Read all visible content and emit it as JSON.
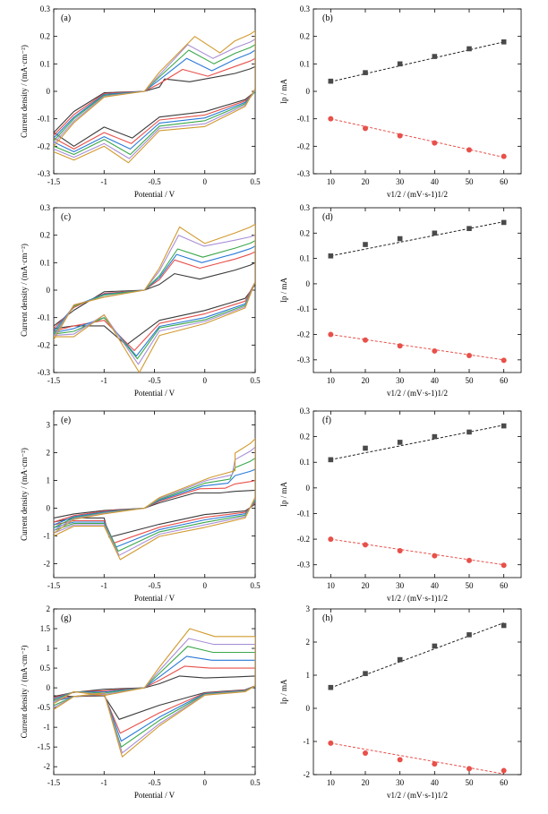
{
  "chart_data": [
    {
      "panel": "a",
      "panel_label": "(a)",
      "type": "line",
      "xlabel": "Potential / V",
      "ylabel": "Current density / (mA·cm⁻²)",
      "xlim": [
        -1.5,
        0.5
      ],
      "ylim": [
        -0.3,
        0.3
      ],
      "xticks": [
        -1.5,
        -1,
        -0.5,
        0,
        0.5
      ],
      "yticks": [
        -0.3,
        -0.2,
        -0.1,
        0,
        0.1,
        0.2,
        0.3
      ],
      "cv": {
        "apeak": [
          -0.4,
          -0.22,
          -0.18,
          -0.16,
          -0.17,
          -0.1
        ],
        "aval": [
          0.045,
          0.08,
          0.12,
          0.15,
          0.17,
          0.2
        ],
        "base": [
          0.035,
          0.055,
          0.075,
          0.1,
          0.12,
          0.14
        ],
        "end": [
          0.09,
          0.12,
          0.15,
          0.17,
          0.19,
          0.22
        ],
        "cpeak": [
          -0.72,
          -0.73,
          -0.74,
          -0.74,
          -0.75,
          -0.76
        ],
        "cval": [
          -0.17,
          -0.19,
          -0.21,
          -0.23,
          -0.245,
          -0.26
        ],
        "startv": [
          -0.15,
          -0.16,
          -0.17,
          -0.18,
          -0.19,
          -0.2
        ],
        "cend": [
          -0.15,
          -0.17,
          -0.185,
          -0.2,
          -0.21,
          -0.22
        ],
        "rev": [
          -0.13,
          -0.15,
          -0.165,
          -0.175,
          -0.19,
          -0.2
        ],
        "vmin": [
          -0.2,
          -0.21,
          -0.22,
          -0.23,
          -0.24,
          -0.25
        ],
        "endz": [
          -0.12,
          -0.14,
          -0.16,
          -0.18,
          -0.2,
          -0.22
        ],
        "ret": [
          -0.03,
          -0.035,
          -0.04,
          -0.045,
          -0.05,
          -0.055
        ],
        "rise": [
          0.0,
          0.0,
          0.0,
          0.0,
          0.005,
          0.01
        ]
      }
    },
    {
      "panel": "b",
      "panel_label": "(b)",
      "type": "scatter",
      "xlabel": "v1/2 / (mV·s-1)1/2",
      "ylabel": "Ip / mA",
      "xlim": [
        5,
        65
      ],
      "ylim": [
        -0.3,
        0.3
      ],
      "xticks": [
        10,
        20,
        30,
        40,
        50,
        60
      ],
      "yticks": [
        -0.3,
        -0.2,
        -0.1,
        0,
        0.1,
        0.2,
        0.3
      ],
      "x": [
        10,
        20,
        30,
        40,
        50,
        60
      ],
      "series": [
        {
          "marker": "square",
          "color": "#4a4a4a",
          "values": [
            0.037,
            0.068,
            0.1,
            0.127,
            0.155,
            0.18
          ],
          "fit": [
            0.035,
            0.18
          ]
        },
        {
          "marker": "circle",
          "color": "#e8504a",
          "values": [
            -0.1,
            -0.135,
            -0.162,
            -0.188,
            -0.213,
            -0.237
          ],
          "fit": [
            -0.1,
            -0.24
          ]
        }
      ]
    },
    {
      "panel": "c",
      "panel_label": "(c)",
      "type": "line",
      "xlabel": "Potential / V",
      "ylabel": "Current density / (mA·cm⁻²)",
      "xlim": [
        -1.5,
        0.5
      ],
      "ylim": [
        -0.3,
        0.3
      ],
      "xticks": [
        -1.5,
        -1,
        -0.5,
        0,
        0.5
      ],
      "yticks": [
        -0.3,
        -0.2,
        -0.1,
        0,
        0.1,
        0.2,
        0.3
      ],
      "cv": {
        "apeak": [
          -0.3,
          -0.3,
          -0.28,
          -0.27,
          -0.26,
          -0.25
        ],
        "aval": [
          0.06,
          0.11,
          0.13,
          0.15,
          0.2,
          0.23
        ],
        "base": [
          0.04,
          0.08,
          0.1,
          0.12,
          0.16,
          0.17
        ],
        "end": [
          0.1,
          0.14,
          0.16,
          0.18,
          0.2,
          0.24
        ],
        "cpeak": [
          -0.78,
          -0.7,
          -0.68,
          -0.67,
          -0.66,
          -0.65
        ],
        "cval": [
          -0.2,
          -0.22,
          -0.24,
          -0.25,
          -0.27,
          -0.3
        ],
        "startv": [
          -0.13,
          -0.14,
          -0.15,
          -0.16,
          -0.17,
          -0.18
        ],
        "cend": [
          -0.14,
          -0.15,
          -0.155,
          -0.16,
          -0.165,
          -0.17
        ],
        "rev": [
          -0.13,
          -0.11,
          -0.1,
          -0.1,
          -0.09,
          -0.09
        ],
        "vmin": [
          -0.13,
          -0.13,
          -0.14,
          -0.15,
          -0.16,
          -0.17
        ],
        "endz": [
          -0.09,
          -0.12,
          -0.13,
          -0.14,
          -0.15,
          -0.16
        ],
        "ret": [
          -0.03,
          -0.04,
          -0.05,
          -0.055,
          -0.06,
          -0.065
        ],
        "rise": [
          0.02,
          0.03,
          0.03,
          0.03,
          0.03,
          0.03
        ]
      }
    },
    {
      "panel": "d",
      "panel_label": "(d)",
      "type": "scatter",
      "xlabel": "v1/2 / (mV·s-1)1/2",
      "ylabel": "Ip / mA",
      "xlim": [
        5,
        65
      ],
      "ylim": [
        -0.35,
        0.3
      ],
      "xticks": [
        10,
        20,
        30,
        40,
        50,
        60
      ],
      "yticks": [
        -0.3,
        -0.2,
        -0.1,
        0,
        0.1,
        0.2,
        0.3
      ],
      "x": [
        10,
        20,
        30,
        40,
        50,
        60
      ],
      "series": [
        {
          "marker": "square",
          "color": "#4a4a4a",
          "values": [
            0.11,
            0.155,
            0.178,
            0.2,
            0.218,
            0.242
          ],
          "fit": [
            0.11,
            0.245
          ]
        },
        {
          "marker": "circle",
          "color": "#e8504a",
          "values": [
            -0.2,
            -0.222,
            -0.245,
            -0.265,
            -0.283,
            -0.302
          ],
          "fit": [
            -0.2,
            -0.3
          ]
        }
      ]
    },
    {
      "panel": "e",
      "panel_label": "(e)",
      "type": "line",
      "xlabel": "Potential / V",
      "ylabel": "Current density / (mA·cm⁻²)",
      "xlim": [
        -1.5,
        0.5
      ],
      "ylim": [
        -2.5,
        3.5
      ],
      "xticks": [
        -1.5,
        -1,
        -0.5,
        0,
        0.5
      ],
      "yticks": [
        -2,
        -1,
        0,
        1,
        2,
        3
      ],
      "cv": {
        "apeak": [
          -0.1,
          -0.05,
          -0.02,
          0.0,
          0.02,
          0.05
        ],
        "aval": [
          0.55,
          0.7,
          0.8,
          0.9,
          1.0,
          1.1
        ],
        "base": [
          0.55,
          0.72,
          0.9,
          1.05,
          1.2,
          1.35
        ],
        "end": [
          0.65,
          1.0,
          1.4,
          1.8,
          2.2,
          2.5
        ],
        "cpeak": [
          -0.95,
          -0.9,
          -0.88,
          -0.86,
          -0.85,
          -0.84
        ],
        "cval": [
          -1.05,
          -1.25,
          -1.4,
          -1.55,
          -1.7,
          -1.85
        ],
        "startv": [
          -0.35,
          -0.5,
          -0.6,
          -0.7,
          -0.8,
          -0.9
        ],
        "cend": [
          -0.5,
          -0.6,
          -0.7,
          -0.8,
          -0.9,
          -1.0
        ],
        "rev": [
          -0.35,
          -0.45,
          -0.5,
          -0.55,
          -0.6,
          -0.65
        ],
        "vmin": [
          -0.35,
          -0.45,
          -0.5,
          -0.55,
          -0.6,
          -0.65
        ],
        "endz": [
          -0.2,
          -0.3,
          -0.35,
          -0.4,
          -0.45,
          -0.5
        ],
        "ret": [
          -0.1,
          -0.15,
          -0.2,
          -0.25,
          -0.3,
          -0.35
        ],
        "rise": [
          0.15,
          0.2,
          0.25,
          0.3,
          0.35,
          0.4
        ]
      }
    },
    {
      "panel": "f",
      "panel_label": "(f)",
      "type": "scatter",
      "xlabel": "v1/2 / (mV·s-1)1/2",
      "ylabel": "Ip / mA",
      "xlim": [
        5,
        65
      ],
      "ylim": [
        -0.35,
        0.3
      ],
      "xticks": [
        10,
        20,
        30,
        40,
        50,
        60
      ],
      "yticks": [
        -0.3,
        -0.2,
        -0.1,
        0,
        0.1,
        0.2,
        0.3
      ],
      "x": [
        10,
        20,
        30,
        40,
        50,
        60
      ],
      "series": [
        {
          "marker": "square",
          "color": "#4a4a4a",
          "values": [
            0.11,
            0.155,
            0.178,
            0.2,
            0.218,
            0.242
          ],
          "fit": [
            0.11,
            0.245
          ]
        },
        {
          "marker": "circle",
          "color": "#e8504a",
          "values": [
            -0.2,
            -0.222,
            -0.245,
            -0.265,
            -0.283,
            -0.302
          ],
          "fit": [
            -0.2,
            -0.3
          ]
        }
      ]
    },
    {
      "panel": "g",
      "panel_label": "(g)",
      "type": "line",
      "xlabel": "Potential / V",
      "ylabel": "Current density / (mA·cm⁻²)",
      "xlim": [
        -1.5,
        0.5
      ],
      "ylim": [
        -2.2,
        2.0
      ],
      "xticks": [
        -1.5,
        -1,
        -0.5,
        0,
        0.5
      ],
      "yticks": [
        -2,
        -1.5,
        -1,
        -0.5,
        0,
        0.5,
        1,
        1.5,
        2
      ],
      "cv": {
        "apeak": [
          -0.25,
          -0.2,
          -0.18,
          -0.17,
          -0.16,
          -0.15
        ],
        "aval": [
          0.3,
          0.55,
          0.8,
          1.05,
          1.25,
          1.5
        ],
        "base": [
          0.25,
          0.5,
          0.7,
          0.9,
          1.1,
          1.3
        ],
        "end": [
          0.3,
          0.5,
          0.7,
          0.9,
          1.1,
          1.3
        ],
        "cpeak": [
          -0.85,
          -0.84,
          -0.83,
          -0.83,
          -0.82,
          -0.82
        ],
        "cval": [
          -0.8,
          -1.15,
          -1.35,
          -1.5,
          -1.65,
          -1.75
        ],
        "startv": [
          -0.22,
          -0.25,
          -0.28,
          -0.32,
          -0.36,
          -0.4
        ],
        "cend": [
          -0.2,
          -0.3,
          -0.35,
          -0.45,
          -0.5,
          -0.55
        ],
        "rev": [
          -0.2,
          -0.18,
          -0.16,
          -0.15,
          -0.14,
          -0.13
        ],
        "vmin": [
          -0.22,
          -0.22,
          -0.22,
          -0.22,
          -0.22,
          -0.22
        ],
        "endz": [
          -0.15,
          -0.15,
          -0.15,
          -0.15,
          -0.15,
          -0.15
        ],
        "ret": [
          -0.05,
          -0.06,
          -0.07,
          -0.08,
          -0.09,
          -0.1
        ],
        "rise": [
          0.05,
          0.05,
          0.05,
          0.05,
          0.05,
          0.05
        ]
      }
    },
    {
      "panel": "h",
      "panel_label": "(h)",
      "type": "scatter",
      "xlabel": "v1/2 / (mV·s-1)1/2",
      "ylabel": "Ip / mA",
      "xlim": [
        5,
        65
      ],
      "ylim": [
        -2.0,
        3.0
      ],
      "xticks": [
        10,
        20,
        30,
        40,
        50,
        60
      ],
      "yticks": [
        -2,
        -1,
        0,
        1,
        2,
        3
      ],
      "x": [
        10,
        20,
        30,
        40,
        50,
        60
      ],
      "series": [
        {
          "marker": "square",
          "color": "#4a4a4a",
          "values": [
            0.63,
            1.05,
            1.47,
            1.88,
            2.22,
            2.5
          ],
          "fit": [
            0.62,
            2.58
          ]
        },
        {
          "marker": "circle",
          "color": "#e8504a",
          "values": [
            -1.05,
            -1.35,
            -1.55,
            -1.68,
            -1.82,
            -1.88
          ],
          "fit": [
            -1.05,
            -1.98
          ]
        }
      ]
    }
  ],
  "cv_colors": [
    "#3a3a3a",
    "#e8504a",
    "#2a7ad8",
    "#3aa84a",
    "#a98fd6",
    "#d19a2e"
  ],
  "colors": {
    "fit_black": "#222222",
    "fit_red": "#e8504a"
  }
}
